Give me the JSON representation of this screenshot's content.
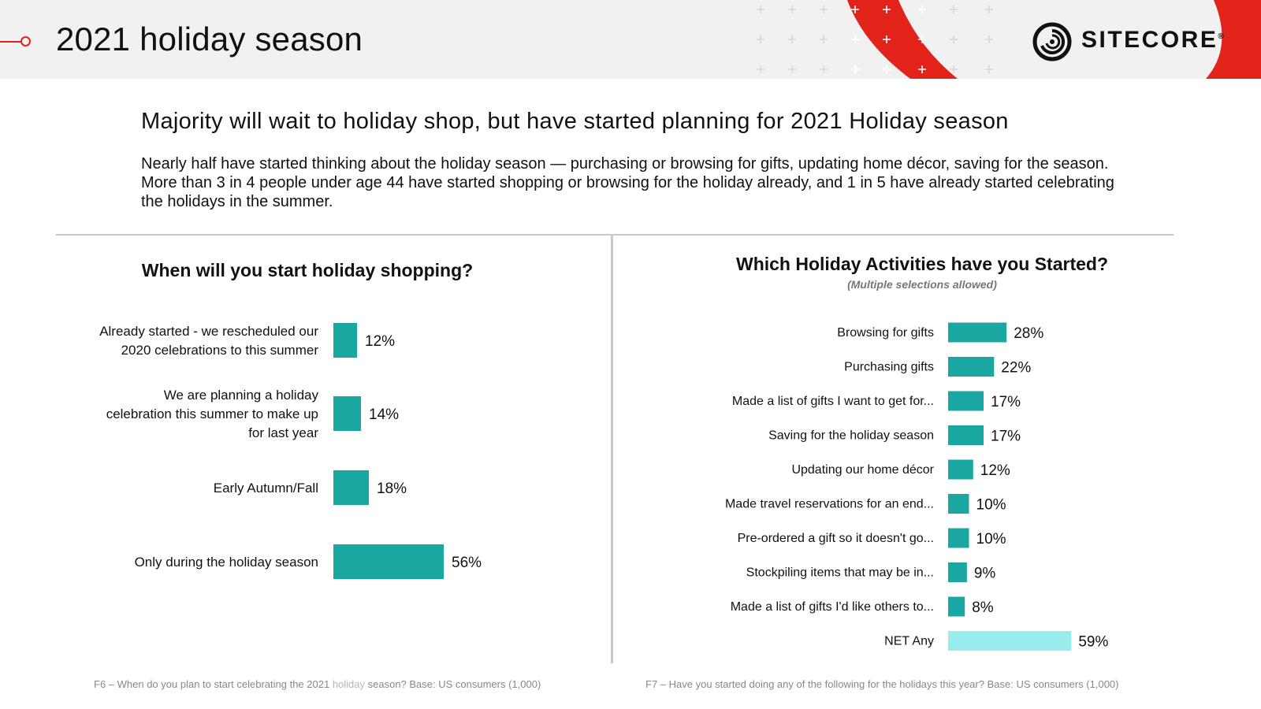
{
  "header": {
    "title": "2021 holiday season",
    "logo_text": "SITECORE",
    "logo_mark": "®"
  },
  "headline": "Majority will wait to holiday shop, but have started planning for 2021 Holiday season",
  "intro": "Nearly half have started thinking about the holiday season — purchasing or browsing for gifts, updating home décor, saving for the season. More than 3 in 4 people under age 44 have started shopping or browsing for the holiday already, and 1 in 5 have already started celebrating the holidays in the summer.",
  "colors": {
    "bar": "#1aa6a1",
    "bar_highlight": "#98ecec",
    "accent": "#e2231a"
  },
  "chart_data": [
    {
      "type": "bar",
      "orientation": "horizontal",
      "title": "When will you start holiday shopping?",
      "categories": [
        "Already started - we rescheduled our 2020 celebrations to this summer",
        "We are planning a holiday celebration this summer to make up for last year",
        "Early Autumn/Fall",
        "Only during the holiday season"
      ],
      "category_lines": [
        [
          "Already started - we rescheduled our",
          "2020 celebrations to this summer"
        ],
        [
          "We are planning a holiday",
          "celebration this summer to make up",
          "for last year"
        ],
        [
          "Early Autumn/Fall"
        ],
        [
          "Only during the holiday season"
        ]
      ],
      "values": [
        12,
        14,
        18,
        56
      ],
      "labels": [
        "12%",
        "14%",
        "18%",
        "56%"
      ],
      "unit": "%"
    },
    {
      "type": "bar",
      "orientation": "horizontal",
      "title": "Which Holiday Activities have you Started?",
      "subtitle": "(Multiple selections allowed)",
      "categories": [
        "Browsing for gifts",
        "Purchasing gifts",
        "Made a list of gifts I want to get for...",
        "Saving for the holiday season",
        "Updating our home décor",
        "Made travel reservations for an end...",
        "Pre-ordered a gift so it doesn't go...",
        "Stockpiling items that may be in...",
        "Made a list of gifts I'd like others to...",
        "NET Any"
      ],
      "values": [
        28,
        22,
        17,
        17,
        12,
        10,
        10,
        9,
        8,
        59
      ],
      "labels": [
        "28%",
        "22%",
        "17%",
        "17%",
        "12%",
        "10%",
        "10%",
        "9%",
        "8%",
        "59%"
      ],
      "highlight": [
        false,
        false,
        false,
        false,
        false,
        false,
        false,
        false,
        false,
        true
      ],
      "unit": "%"
    }
  ],
  "footnotes": {
    "left_pre": "F6 – When do you plan to start celebrating the 2021 ",
    "left_highlight": "holiday",
    "left_post": " season? Base: US consumers (1,000)",
    "right": "F7 – Have you started doing any of the following for the holidays this year? Base: US consumers (1,000)"
  }
}
